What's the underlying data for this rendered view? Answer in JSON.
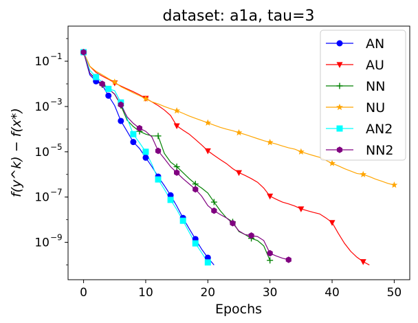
{
  "chart_data": {
    "type": "line",
    "title": "dataset: a1a, tau=3",
    "xlabel": "Epochs",
    "ylabel": "f(y^k) − f(x*)",
    "yscale": "log",
    "xlim": [
      -2.5,
      52.5
    ],
    "ylim_log10": [
      -10.65,
      0.55
    ],
    "xticks": [
      0,
      10,
      20,
      30,
      40,
      50
    ],
    "yticks": [
      {
        "value": 0.1,
        "base": "10",
        "exp": "−1"
      },
      {
        "value": 0.001,
        "base": "10",
        "exp": "−3"
      },
      {
        "value": 1e-05,
        "base": "10",
        "exp": "−5"
      },
      {
        "value": 1e-07,
        "base": "10",
        "exp": "−7"
      },
      {
        "value": 1e-09,
        "base": "10",
        "exp": "−9"
      }
    ],
    "legend_position": "top-right",
    "series": [
      {
        "name": "AN",
        "color": "#0000ff",
        "marker": "circle",
        "x": [
          0,
          1,
          2,
          3,
          4,
          5,
          6,
          7,
          8,
          9,
          10,
          11,
          12,
          13,
          14,
          15,
          16,
          17,
          18,
          19,
          20,
          21
        ],
        "y": [
          0.25,
          0.025,
          0.013,
          0.009,
          0.003,
          0.0011,
          0.00023,
          8e-05,
          2.7e-05,
          1.4e-05,
          5.5e-06,
          2.2e-06,
          8e-07,
          3.2e-07,
          1.2e-07,
          4e-08,
          1.2e-08,
          4e-09,
          1.4e-09,
          5e-10,
          2.1e-10,
          1e-10
        ],
        "marker_every": 2
      },
      {
        "name": "AU",
        "color": "#ff0000",
        "marker": "triangle-down",
        "x": [
          0,
          1,
          2,
          3,
          4,
          5,
          6,
          7,
          8,
          9,
          10,
          11,
          12,
          13,
          14,
          15,
          16,
          17,
          18,
          19,
          20,
          21,
          22,
          23,
          24,
          25,
          26,
          27,
          28,
          29,
          30,
          31,
          32,
          33,
          34,
          35,
          36,
          37,
          38,
          39,
          40,
          41,
          42,
          43,
          44,
          45,
          46
        ],
        "y": [
          0.25,
          0.06,
          0.032,
          0.022,
          0.016,
          0.011,
          0.008,
          0.006,
          0.0045,
          0.0033,
          0.0023,
          0.0016,
          0.0011,
          0.0007,
          0.0004,
          0.00014,
          9e-05,
          6e-05,
          3.5e-05,
          2e-05,
          1.1e-05,
          7e-06,
          4.5e-06,
          3e-06,
          1.8e-06,
          1.2e-06,
          9e-07,
          6.5e-07,
          4.5e-07,
          2.5e-07,
          1.1e-07,
          8e-08,
          6e-08,
          5e-08,
          4e-08,
          3e-08,
          2.5e-08,
          2.1e-08,
          1.8e-08,
          1.2e-08,
          7.5e-09,
          2.5e-09,
          9e-10,
          4e-10,
          2.2e-10,
          1.4e-10,
          1e-10
        ],
        "marker_every": 5
      },
      {
        "name": "NN",
        "color": "#008000",
        "marker": "plus",
        "x": [
          0,
          1,
          2,
          3,
          4,
          5,
          6,
          7,
          8,
          9,
          10,
          11,
          12,
          13,
          14,
          15,
          16,
          17,
          18,
          19,
          20,
          21,
          22,
          23,
          24,
          25,
          26,
          27,
          28,
          29,
          30
        ],
        "y": [
          0.25,
          0.03,
          0.016,
          0.009,
          0.006,
          0.0035,
          0.0011,
          0.00025,
          0.00013,
          8e-05,
          6e-05,
          5e-05,
          5e-05,
          8.5e-06,
          3.5e-06,
          2.2e-06,
          1.2e-06,
          6.5e-07,
          3.8e-07,
          2.5e-07,
          1.5e-07,
          6e-08,
          2.5e-08,
          1.2e-08,
          8e-09,
          3e-09,
          2.2e-09,
          1.5e-09,
          1.2e-09,
          7e-10,
          1.6e-10
        ],
        "marker_every": 3
      },
      {
        "name": "NU",
        "color": "#ffa500",
        "marker": "star",
        "x": [
          0,
          1,
          2,
          3,
          4,
          5,
          6,
          7,
          8,
          9,
          10,
          11,
          12,
          13,
          14,
          15,
          16,
          17,
          18,
          19,
          20,
          21,
          22,
          23,
          24,
          25,
          26,
          27,
          28,
          29,
          30,
          31,
          32,
          33,
          34,
          35,
          36,
          37,
          38,
          39,
          40,
          41,
          42,
          43,
          44,
          45,
          46,
          47,
          48,
          49,
          50
        ],
        "y": [
          0.25,
          0.06,
          0.036,
          0.025,
          0.017,
          0.012,
          0.0075,
          0.0055,
          0.004,
          0.003,
          0.0022,
          0.0016,
          0.0013,
          0.001,
          0.0008,
          0.00065,
          0.0005,
          0.00038,
          0.0003,
          0.00024,
          0.00019,
          0.00015,
          0.00012,
          0.0001,
          8.5e-05,
          7e-05,
          5.8e-05,
          4.7e-05,
          3.8e-05,
          3.1e-05,
          2.6e-05,
          2.2e-05,
          1.8e-05,
          1.5e-05,
          1.3e-05,
          1e-05,
          8.2e-06,
          6.8e-06,
          5.7e-06,
          4.2e-06,
          3.1e-06,
          2.4e-06,
          1.8e-06,
          1.4e-06,
          1.1e-06,
          1e-06,
          8e-07,
          6.2e-07,
          5e-07,
          4e-07,
          3.4e-07
        ],
        "marker_every": 5
      },
      {
        "name": "AN2",
        "color": "#00ffff",
        "marker": "square",
        "x": [
          0,
          1,
          2,
          3,
          4,
          5,
          6,
          7,
          8,
          9,
          10,
          11,
          12,
          13,
          14,
          15,
          16,
          17,
          18,
          19,
          20
        ],
        "y": [
          0.25,
          0.04,
          0.02,
          0.012,
          0.006,
          0.005,
          0.0015,
          0.0003,
          6e-05,
          2.5e-05,
          1e-05,
          2.8e-06,
          6e-07,
          2.2e-07,
          7.5e-08,
          2.8e-08,
          9e-09,
          2.8e-09,
          9e-10,
          3.5e-10,
          1.3e-10
        ],
        "marker_every": 2
      },
      {
        "name": "NN2",
        "color": "#800080",
        "marker": "hexagon",
        "x": [
          0,
          1,
          2,
          3,
          4,
          5,
          6,
          7,
          8,
          9,
          10,
          11,
          12,
          13,
          14,
          15,
          16,
          17,
          18,
          19,
          20,
          21,
          22,
          23,
          24,
          25,
          26,
          27,
          28,
          29,
          30,
          31,
          32,
          33
        ],
        "y": [
          0.25,
          0.03,
          0.015,
          0.01,
          0.006,
          0.0035,
          0.0012,
          0.00035,
          0.00018,
          0.00011,
          8e-05,
          4.5e-05,
          1.1e-05,
          5e-06,
          2.2e-06,
          1.2e-06,
          6.5e-07,
          3.8e-07,
          2.2e-07,
          1.1e-07,
          4.2e-08,
          2.5e-08,
          1.7e-08,
          1.2e-08,
          7e-09,
          3.2e-09,
          2.2e-09,
          2e-09,
          1.8e-09,
          1.2e-09,
          3.3e-10,
          2.5e-10,
          2e-10,
          1.7e-10
        ],
        "marker_every": 3
      }
    ]
  }
}
